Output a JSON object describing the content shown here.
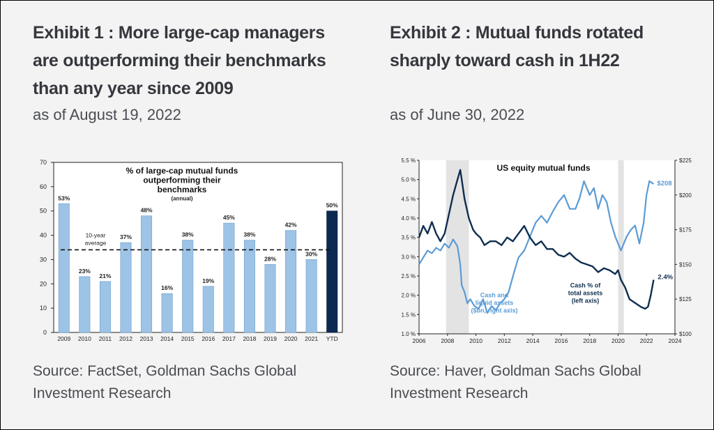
{
  "exhibit1": {
    "title_lines": [
      "Exhibit 1 : More large-cap managers",
      "are outperforming their benchmarks",
      "than any year since 2009"
    ],
    "subtitle": "as of August 19, 2022",
    "source_lines": [
      "Source: FactSet, Goldman Sachs Global",
      "Investment Research"
    ]
  },
  "exhibit2": {
    "title_lines": [
      "Exhibit 2 : Mutual funds rotated",
      "sharply toward cash in 1H22"
    ],
    "subtitle": "as of June 30, 2022",
    "source_lines": [
      "Source: Haver, Goldman Sachs Global",
      "Investment Research"
    ]
  },
  "colors": {
    "bar_light": "#9dc3e6",
    "bar_dark": "#0a2a52",
    "line_light": "#5b9bd5",
    "line_dark": "#0f2d4f",
    "recession_shade": "#e3e3e3"
  },
  "chart_data": [
    {
      "type": "bar",
      "title_lines": [
        "% of large-cap mutual funds",
        "outperforming their",
        "benchmarks"
      ],
      "subtitle": "(annual)",
      "categories": [
        "2009",
        "2010",
        "2011",
        "2012",
        "2013",
        "2014",
        "2015",
        "2016",
        "2017",
        "2018",
        "2019",
        "2020",
        "2021",
        "YTD"
      ],
      "values": [
        53,
        23,
        21,
        37,
        48,
        16,
        38,
        19,
        45,
        38,
        28,
        42,
        30,
        50
      ],
      "value_labels": [
        "53%",
        "23%",
        "21%",
        "37%",
        "48%",
        "16%",
        "38%",
        "19%",
        "45%",
        "38%",
        "28%",
        "42%",
        "30%",
        "50%"
      ],
      "highlight_category": "YTD",
      "ylim": [
        0,
        70
      ],
      "yticks": [
        0,
        10,
        20,
        30,
        40,
        50,
        60,
        70
      ],
      "ytick_labels": [
        "0",
        "10",
        "20",
        "30",
        "40",
        "50",
        "60",
        "70"
      ],
      "reference_line": {
        "value": 34,
        "label_lines": [
          "10-year",
          "average"
        ],
        "style": "dashed"
      }
    },
    {
      "type": "line",
      "title": "US equity mutual funds",
      "x_range": [
        2006,
        2024
      ],
      "x_ticks": [
        "2006",
        "2008",
        "2010",
        "2012",
        "2014",
        "2016",
        "2018",
        "2020",
        "2022",
        "2024"
      ],
      "y_left": {
        "range": [
          1.0,
          5.5
        ],
        "ticks": [
          "1.0 %",
          "1.5 %",
          "2.0 %",
          "2.5 %",
          "3.0 %",
          "3.5 %",
          "4.0 %",
          "4.5 %",
          "5.0 %",
          "5.5 %"
        ]
      },
      "y_right": {
        "range": [
          100,
          225
        ],
        "ticks": [
          "$100",
          "$125",
          "$150",
          "$175",
          "$200",
          "$225"
        ]
      },
      "recession_shading": [
        [
          2007.9,
          2009.5
        ],
        [
          2020.0,
          2020.4
        ]
      ],
      "series": [
        {
          "name": "Cash % of total assets (left axis)",
          "legend_lines": [
            "Cash % of",
            "total assets",
            "(left axis)"
          ],
          "axis": "left",
          "end_label": "2.4%",
          "color": "#0f2d4f",
          "x": [
            2006.0,
            2006.3,
            2006.6,
            2006.9,
            2007.2,
            2007.5,
            2007.8,
            2008.1,
            2008.4,
            2008.7,
            2008.9,
            2009.0,
            2009.2,
            2009.5,
            2009.8,
            2010.0,
            2010.3,
            2010.6,
            2011.0,
            2011.4,
            2011.8,
            2012.2,
            2012.6,
            2013.0,
            2013.4,
            2013.8,
            2014.2,
            2014.6,
            2015.0,
            2015.4,
            2015.8,
            2016.2,
            2016.6,
            2017.0,
            2017.4,
            2017.8,
            2018.2,
            2018.6,
            2019.0,
            2019.4,
            2019.8,
            2020.0,
            2020.2,
            2020.5,
            2020.8,
            2021.2,
            2021.6,
            2021.9,
            2022.1,
            2022.3,
            2022.5
          ],
          "y": [
            3.5,
            3.8,
            3.6,
            3.9,
            3.6,
            3.4,
            3.6,
            4.1,
            4.6,
            5.0,
            5.25,
            5.0,
            4.5,
            4.0,
            3.7,
            3.6,
            3.5,
            3.3,
            3.4,
            3.4,
            3.3,
            3.5,
            3.4,
            3.6,
            3.8,
            3.5,
            3.3,
            3.4,
            3.2,
            3.2,
            3.05,
            3.0,
            3.1,
            2.95,
            2.85,
            2.8,
            2.75,
            2.6,
            2.7,
            2.65,
            2.55,
            2.65,
            2.4,
            2.2,
            1.9,
            1.8,
            1.7,
            1.65,
            1.7,
            2.0,
            2.4
          ]
        },
        {
          "name": "Cash and liquid assets ($bn, right axis)",
          "legend_lines": [
            "Cash and",
            "liquid assets",
            "($bn, right axis)"
          ],
          "axis": "right",
          "end_label": "$208",
          "color": "#5b9bd5",
          "x": [
            2006.0,
            2006.3,
            2006.6,
            2006.9,
            2007.2,
            2007.5,
            2007.8,
            2008.1,
            2008.4,
            2008.7,
            2008.9,
            2009.0,
            2009.2,
            2009.4,
            2009.6,
            2009.9,
            2010.2,
            2010.5,
            2010.8,
            2011.1,
            2011.4,
            2011.7,
            2012.0,
            2012.3,
            2012.7,
            2013.0,
            2013.4,
            2013.8,
            2014.2,
            2014.6,
            2015.0,
            2015.4,
            2015.8,
            2016.2,
            2016.6,
            2017.0,
            2017.3,
            2017.6,
            2018.0,
            2018.3,
            2018.6,
            2018.9,
            2019.2,
            2019.5,
            2019.8,
            2020.0,
            2020.2,
            2020.4,
            2020.6,
            2020.9,
            2021.2,
            2021.5,
            2021.8,
            2022.0,
            2022.2,
            2022.5
          ],
          "y": [
            150,
            155,
            160,
            158,
            162,
            160,
            165,
            162,
            168,
            163,
            150,
            135,
            130,
            122,
            125,
            120,
            118,
            125,
            115,
            120,
            117,
            122,
            125,
            130,
            145,
            155,
            160,
            170,
            180,
            185,
            180,
            188,
            195,
            200,
            190,
            190,
            198,
            210,
            200,
            205,
            190,
            200,
            195,
            180,
            170,
            165,
            160,
            165,
            170,
            175,
            178,
            165,
            180,
            200,
            210,
            208
          ]
        }
      ]
    }
  ]
}
